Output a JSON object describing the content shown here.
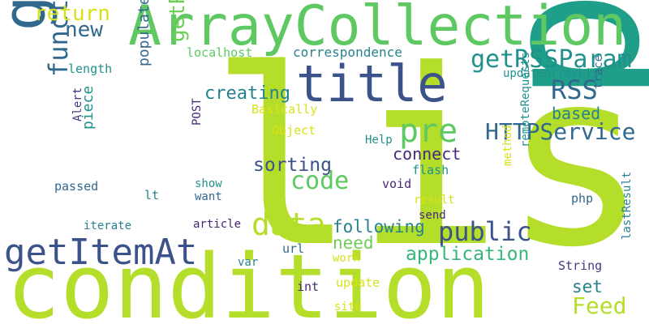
{
  "wordcloud": {
    "background": "#ffffff",
    "palette": {
      "lime": "#b5de2b",
      "green": "#5ec962",
      "teal": "#21918c",
      "seagreen": "#1f9e89",
      "blue": "#31688e",
      "slate": "#3b528b",
      "indigo": "#443983",
      "purple": "#482878",
      "lightgreen": "#6ece58",
      "yellow": "#d8e219",
      "cyan": "#26828e",
      "mint": "#35b779"
    },
    "words": [
      {
        "id": "list",
        "text": "list",
        "color": "#b5de2b"
      },
      {
        "id": "p",
        "text": "p",
        "color": "#1f9e89"
      },
      {
        "id": "condition",
        "text": "condition",
        "color": "#b5de2b"
      },
      {
        "id": "arraycollection",
        "text": "ArrayCollection",
        "color": "#5ec962"
      },
      {
        "id": "getrss",
        "text": "getRSS",
        "color": "#31688e"
      },
      {
        "id": "title",
        "text": "title",
        "color": "#3b528b"
      },
      {
        "id": "getitemat",
        "text": "getItemAt",
        "color": "#3b528b"
      },
      {
        "id": "pre",
        "text": "pre",
        "color": "#5ec962"
      },
      {
        "id": "data",
        "text": "data",
        "color": "#b5de2b"
      },
      {
        "id": "code",
        "text": "code",
        "color": "#5ec962"
      },
      {
        "id": "getrssparam",
        "text": "getRSSParam",
        "color": "#21918c"
      },
      {
        "id": "rss",
        "text": "RSS",
        "color": "#31688e"
      },
      {
        "id": "httpservice",
        "text": "HTTPService",
        "color": "#31688e"
      },
      {
        "id": "public",
        "text": "public",
        "color": "#3b528b"
      },
      {
        "id": "feed",
        "text": "Feed",
        "color": "#b5de2b"
      },
      {
        "id": "function",
        "text": "function",
        "color": "#31688e"
      },
      {
        "id": "getrssupdate",
        "text": "getRSSUpdate",
        "color": "#6ece58"
      },
      {
        "id": "new",
        "text": "new",
        "color": "#31688e"
      },
      {
        "id": "return",
        "text": "return",
        "color": "#d8e219"
      },
      {
        "id": "application",
        "text": "application",
        "color": "#35b779"
      },
      {
        "id": "sorting",
        "text": "sorting",
        "color": "#3b528b"
      },
      {
        "id": "creating",
        "text": "creating",
        "color": "#26828e"
      },
      {
        "id": "following",
        "text": "following",
        "color": "#26828e"
      },
      {
        "id": "connect",
        "text": "connect",
        "color": "#482878"
      },
      {
        "id": "need",
        "text": "need",
        "color": "#6ece58"
      },
      {
        "id": "set",
        "text": "set",
        "color": "#26828e"
      },
      {
        "id": "based",
        "text": "based",
        "color": "#26828e"
      },
      {
        "id": "populated",
        "text": "populated",
        "color": "#31688e"
      },
      {
        "id": "piece",
        "text": "piece",
        "color": "#21918c"
      },
      {
        "id": "correspondence",
        "text": "correspondence",
        "color": "#26828e"
      },
      {
        "id": "localhost",
        "text": "localhost",
        "color": "#5ec962"
      },
      {
        "id": "updatearraylist",
        "text": "updateArrayList",
        "color": "#21918c"
      },
      {
        "id": "length",
        "text": "length",
        "color": "#21918c"
      },
      {
        "id": "basically",
        "text": "Basically",
        "color": "#d8e219"
      },
      {
        "id": "object",
        "text": "Object",
        "color": "#d8e219"
      },
      {
        "id": "post",
        "text": "POST",
        "color": "#482878"
      },
      {
        "id": "alert",
        "text": "Alert",
        "color": "#443983"
      },
      {
        "id": "help",
        "text": "Help",
        "color": "#21918c"
      },
      {
        "id": "flash",
        "text": "flash",
        "color": "#21918c"
      },
      {
        "id": "void",
        "text": "void",
        "color": "#482878"
      },
      {
        "id": "trace",
        "text": "trace",
        "color": "#31688e"
      },
      {
        "id": "method",
        "text": "method",
        "color": "#d8e219"
      },
      {
        "id": "remoterequests",
        "text": "remoteRequests",
        "color": "#21918c"
      },
      {
        "id": "result",
        "text": "result",
        "color": "#d8e219"
      },
      {
        "id": "php",
        "text": "php",
        "color": "#31688e"
      },
      {
        "id": "send",
        "text": "send",
        "color": "#482878"
      },
      {
        "id": "show",
        "text": "show",
        "color": "#21918c"
      },
      {
        "id": "want",
        "text": "want",
        "color": "#31688e"
      },
      {
        "id": "passed",
        "text": "passed",
        "color": "#31688e"
      },
      {
        "id": "lt",
        "text": "lt",
        "color": "#26828e"
      },
      {
        "id": "iterate",
        "text": "iterate",
        "color": "#26828e"
      },
      {
        "id": "article",
        "text": "article",
        "color": "#482878"
      },
      {
        "id": "url",
        "text": "url",
        "color": "#31688e"
      },
      {
        "id": "work",
        "text": "work",
        "color": "#d8e219"
      },
      {
        "id": "var",
        "text": "var",
        "color": "#26828e"
      },
      {
        "id": "string",
        "text": "String",
        "color": "#443983"
      },
      {
        "id": "int",
        "text": "int",
        "color": "#482878"
      },
      {
        "id": "update",
        "text": "update",
        "color": "#d8e219"
      },
      {
        "id": "site",
        "text": "site",
        "color": "#d8e219"
      },
      {
        "id": "lastresult",
        "text": "lastResult",
        "color": "#26828e"
      }
    ]
  }
}
